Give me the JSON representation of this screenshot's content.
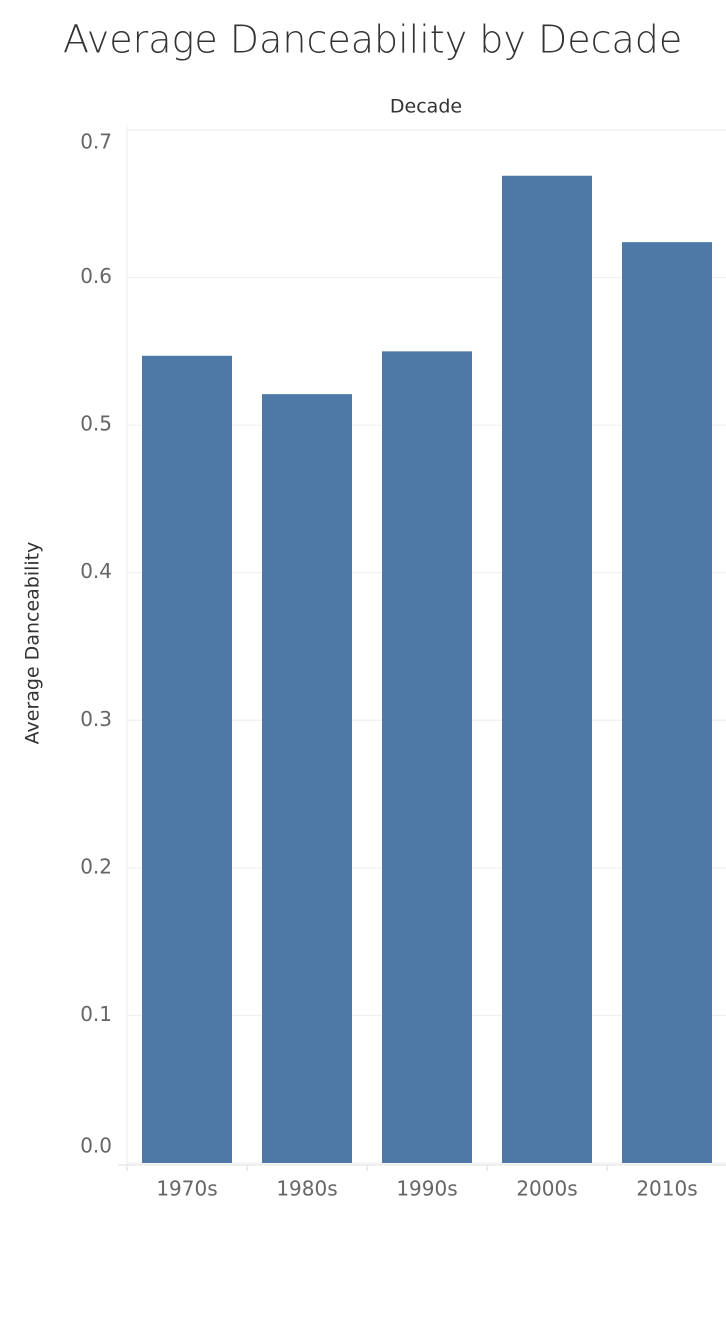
{
  "chart_data": {
    "type": "bar",
    "title": "Average Danceability by Decade",
    "x_label": "Decade",
    "y_label": "Average Danceability",
    "categories": [
      "1970s",
      "1980s",
      "1990s",
      "2000s",
      "2010s"
    ],
    "values": [
      0.547,
      0.521,
      0.55,
      0.669,
      0.624
    ],
    "color": "#4e79a7",
    "ylim": [
      0,
      0.7
    ],
    "yticks": [
      {
        "value": 0,
        "label": "0.0"
      },
      0.1,
      0.2,
      0.3,
      0.4,
      0.5,
      0.6,
      0.7
    ],
    "grid": true
  }
}
